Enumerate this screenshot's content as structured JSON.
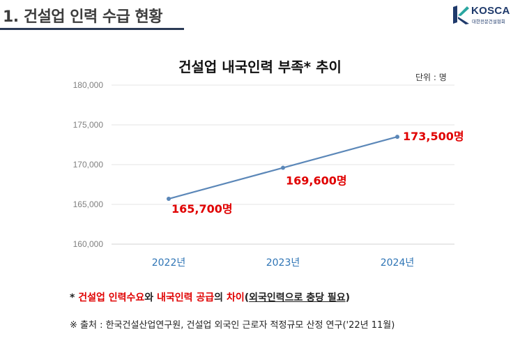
{
  "header": {
    "title": "1. 건설업 인력 수급 현황",
    "logo_text": "KOSCA",
    "logo_subtext": "대한전문건설협회"
  },
  "chart_data": {
    "type": "line",
    "title": "건설업 내국인력 부족* 추이",
    "unit_label": "단위 : 명",
    "categories": [
      "2022년",
      "2023년",
      "2024년"
    ],
    "series": [
      {
        "values": [
          165700,
          169600,
          173500
        ],
        "data_labels": [
          "165,700명",
          "169,600명",
          "173,500명"
        ],
        "color": "#5b87b8",
        "label_color": "#e00000"
      }
    ],
    "ylim": [
      160000,
      180000
    ],
    "yticks": [
      160000,
      165000,
      170000,
      175000,
      180000
    ],
    "ytick_labels": [
      "160,000",
      "165,000",
      "170,000",
      "175,000",
      "180,000"
    ],
    "grid": true,
    "xtick_color": "#2e74b5"
  },
  "footnote": {
    "prefix": "* ",
    "part1": "건설업 인력수요",
    "part2": "와 ",
    "part3": "내국인력 공급",
    "part4": "의 ",
    "part5": "차이",
    "part6": "(",
    "part7": "외국인력으로 충당 필요",
    "part8": ")"
  },
  "source": "※ 출처 : 한국건설산업연구원, 건설업 외국인 근로자 적정규모 산정 연구('22년 11월)"
}
